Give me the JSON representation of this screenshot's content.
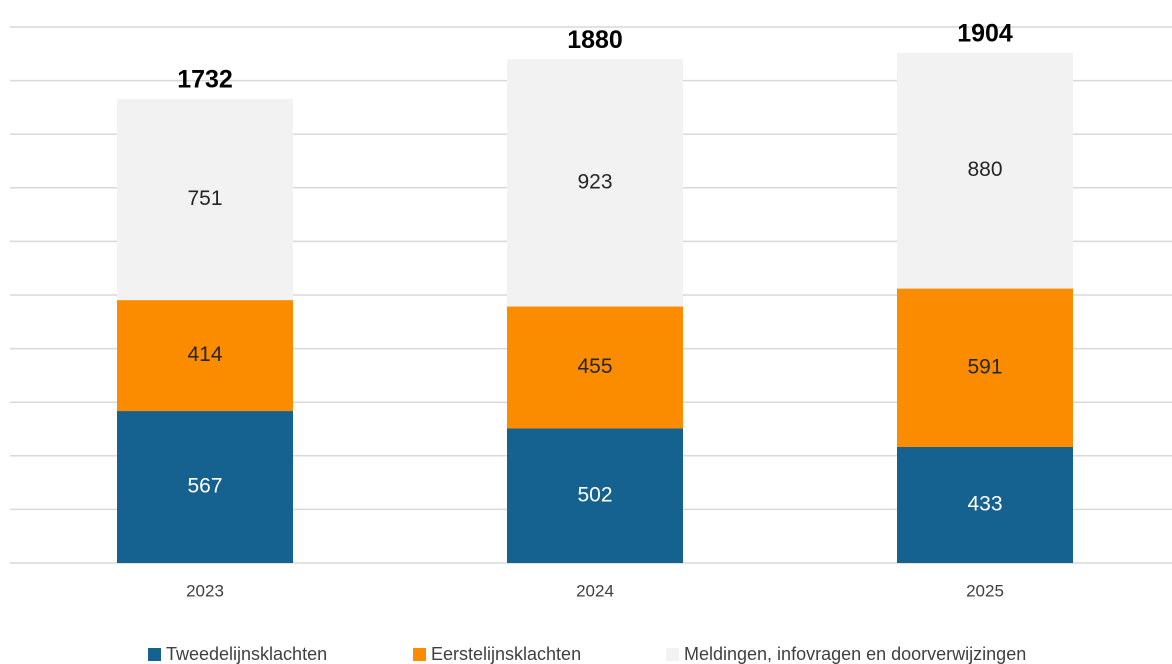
{
  "chart_data": {
    "type": "stacked_bar",
    "categories": [
      "2023",
      "2024",
      "2025"
    ],
    "series": [
      {
        "name": "Tweedelijnsklachten",
        "color": "#15618f",
        "values": [
          567,
          502,
          433
        ]
      },
      {
        "name": "Eerstelijnsklachten",
        "color": "#fb8c00",
        "values": [
          414,
          455,
          591
        ]
      },
      {
        "name": "Meldingen, infovragen en doorverwijzingen",
        "color": "#f2f2f2",
        "values": [
          751,
          923,
          880
        ]
      }
    ],
    "totals": [
      1732,
      1880,
      1904
    ],
    "ylim": [
      0,
      2000
    ],
    "yticks": [
      0,
      200,
      400,
      600,
      800,
      1000,
      1200,
      1400,
      1600,
      1800,
      2000
    ],
    "grid": true,
    "legend": "bottom"
  }
}
